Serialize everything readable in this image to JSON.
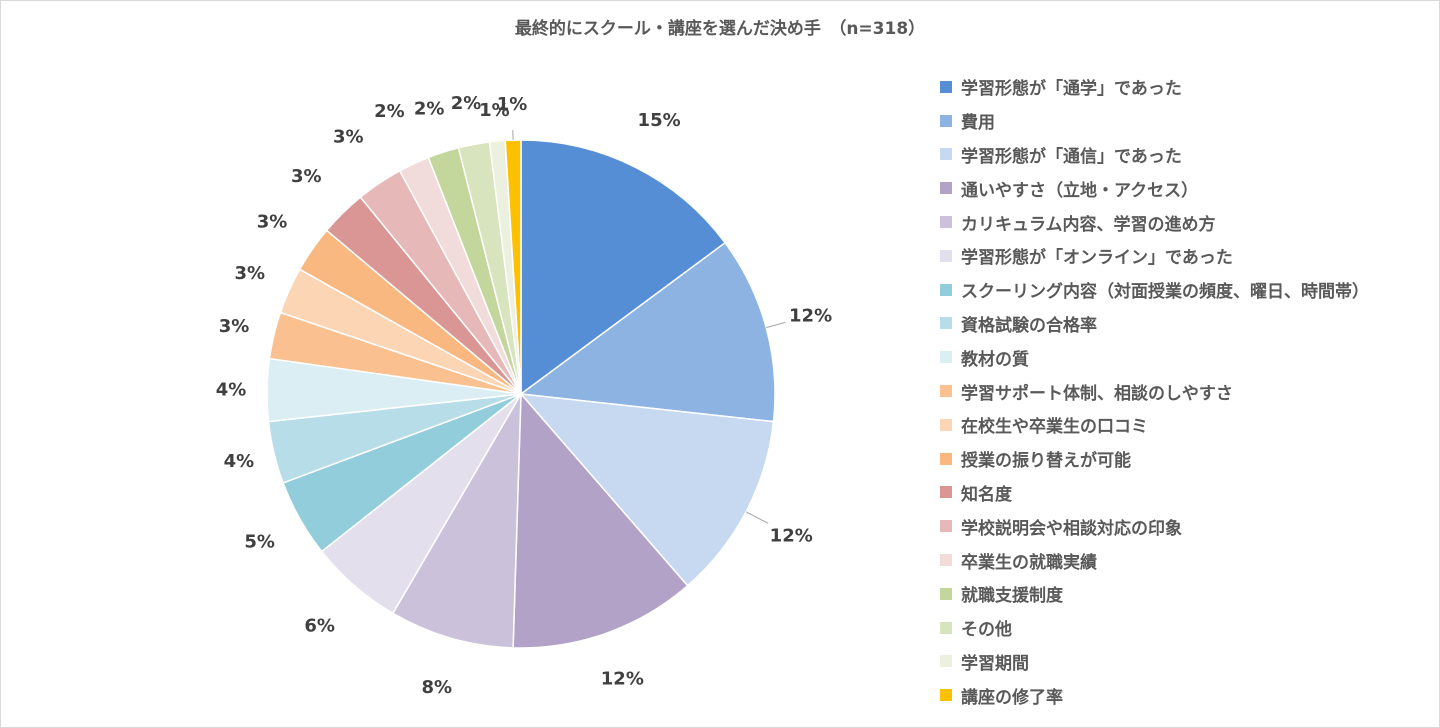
{
  "chart_data": {
    "type": "pie",
    "title": "最終的にスクール・講座を選んだ決め手　（n=318）",
    "legend_position": "right",
    "slices": [
      {
        "label": "学習形態が「通学」であった",
        "value": 15,
        "display": "15%",
        "color": "#558ed5"
      },
      {
        "label": "費用",
        "value": 12,
        "display": "12%",
        "color": "#8db3e2"
      },
      {
        "label": "学習形態が「通信」であった",
        "value": 12,
        "display": "12%",
        "color": "#c6d9f1"
      },
      {
        "label": "通いやすさ（立地・アクセス）",
        "value": 12,
        "display": "12%",
        "color": "#b3a2c7"
      },
      {
        "label": "カリキュラム内容、学習の進め方",
        "value": 8,
        "display": "8%",
        "color": "#ccc1da"
      },
      {
        "label": "学習形態が「オンライン」であった",
        "value": 6,
        "display": "6%",
        "color": "#e4dfec"
      },
      {
        "label": "スクーリング内容（対面授業の頻度、曜日、時間帯）",
        "value": 5,
        "display": "5%",
        "color": "#92cddc"
      },
      {
        "label": "資格試験の合格率",
        "value": 4,
        "display": "4%",
        "color": "#b7dde8"
      },
      {
        "label": "教材の質",
        "value": 4,
        "display": "4%",
        "color": "#daeef3"
      },
      {
        "label": "学習サポート体制、相談のしやすさ",
        "value": 3,
        "display": "3%",
        "color": "#fac090"
      },
      {
        "label": "在校生や卒業生の口コミ",
        "value": 3,
        "display": "3%",
        "color": "#fcd5b5"
      },
      {
        "label": "授業の振り替えが可能",
        "value": 3,
        "display": "3%",
        "color": "#f9b880"
      },
      {
        "label": "知名度",
        "value": 3,
        "display": "3%",
        "color": "#d99694"
      },
      {
        "label": "学校説明会や相談対応の印象",
        "value": 3,
        "display": "3%",
        "color": "#e6b9b8"
      },
      {
        "label": "卒業生の就職実績",
        "value": 2,
        "display": "2%",
        "color": "#f2dcdb"
      },
      {
        "label": "就職支援制度",
        "value": 2,
        "display": "2%",
        "color": "#c3d69b"
      },
      {
        "label": "その他",
        "value": 2,
        "display": "2%",
        "color": "#d7e4bd"
      },
      {
        "label": "学習期間",
        "value": 1,
        "display": "1%",
        "color": "#ebf1de"
      },
      {
        "label": "講座の修了率",
        "value": 1,
        "display": "1%",
        "color": "#ffc000"
      }
    ]
  }
}
